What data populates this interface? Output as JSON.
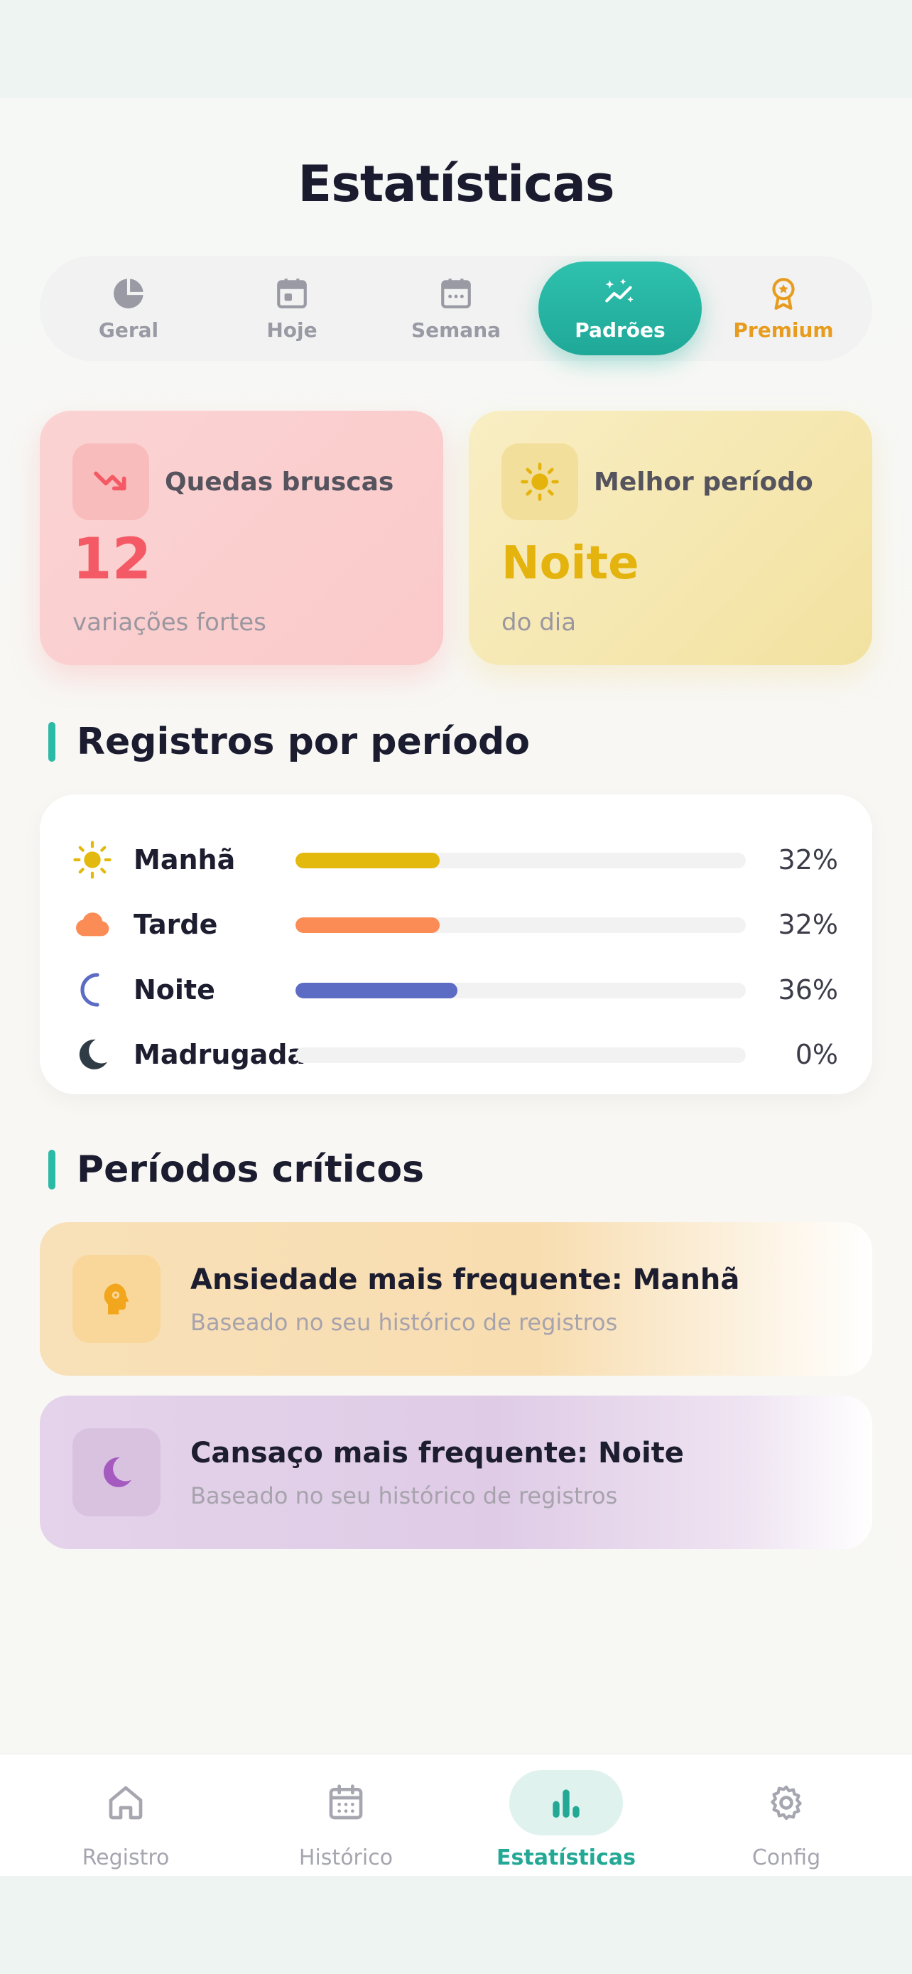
{
  "page": {
    "title": "Estatísticas"
  },
  "tabs": [
    {
      "label": "Geral",
      "icon": "pie-chart-icon"
    },
    {
      "label": "Hoje",
      "icon": "calendar-day-icon"
    },
    {
      "label": "Semana",
      "icon": "calendar-week-icon"
    },
    {
      "label": "Padrões",
      "icon": "sparkle-chart-icon",
      "active": true
    },
    {
      "label": "Premium",
      "icon": "award-icon"
    }
  ],
  "cards": {
    "drops": {
      "label": "Quedas bruscas",
      "value": "12",
      "sub": "variações fortes",
      "icon": "trending-down-icon",
      "color": "#f45a65"
    },
    "best": {
      "label": "Melhor período",
      "value": "Noite",
      "sub": "do dia",
      "icon": "sun-icon",
      "color": "#e4b30d"
    }
  },
  "periods_section": {
    "title": "Registros por período",
    "rows": [
      {
        "name": "Manhã",
        "pct_label": "32%",
        "fraction": 0.32,
        "color": "#e4b90d",
        "icon": "sun-icon"
      },
      {
        "name": "Tarde",
        "pct_label": "32%",
        "fraction": 0.32,
        "color": "#fb8c55",
        "icon": "cloud-icon"
      },
      {
        "name": "Noite",
        "pct_label": "36%",
        "fraction": 0.36,
        "color": "#5c6cc4",
        "icon": "moon-outline-icon"
      },
      {
        "name": "Madrugada",
        "pct_label": "0%",
        "fraction": 0.0,
        "color": "#2f3b45",
        "icon": "moon-filled-icon"
      }
    ]
  },
  "critical_section": {
    "title": "Períodos críticos",
    "items": [
      {
        "title": "Ansiedade mais frequente: Manhã",
        "sub": "Baseado no seu histórico de registros",
        "icon": "head-gear-icon",
        "color": "#f2a61d"
      },
      {
        "title": "Cansaço mais frequente: Noite",
        "sub": "Baseado no seu histórico de registros",
        "icon": "moon-icon",
        "color": "#a55ac0"
      }
    ]
  },
  "nav": [
    {
      "label": "Registro",
      "icon": "home-icon"
    },
    {
      "label": "Histórico",
      "icon": "calendar-icon"
    },
    {
      "label": "Estatísticas",
      "icon": "bar-chart-icon",
      "active": true
    },
    {
      "label": "Config",
      "icon": "gear-icon"
    }
  ]
}
